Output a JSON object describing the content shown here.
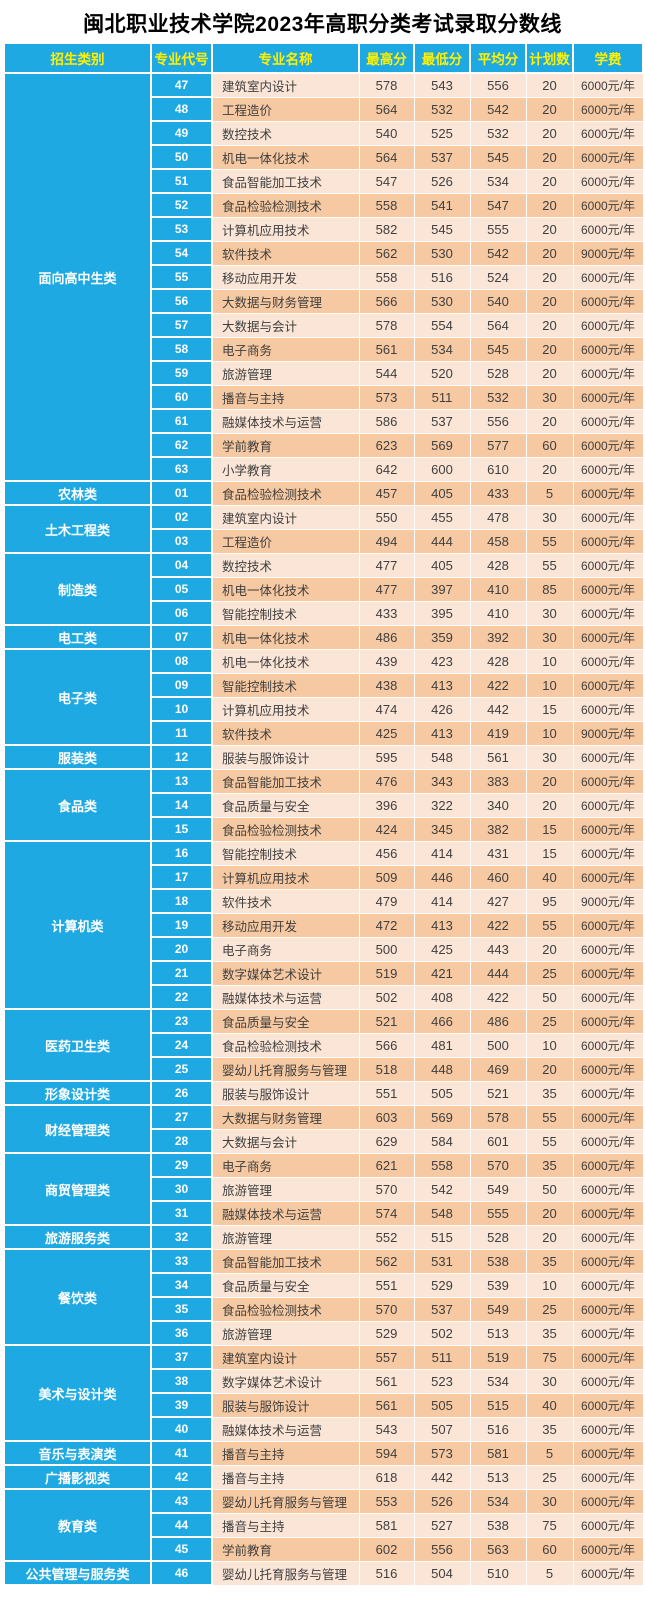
{
  "title": "闽北职业技术学院2023年高职分类考试录取分数线",
  "colors": {
    "blue": "#1ea9e2",
    "header_text": "#fff100",
    "category_text": "#ffffff",
    "row_light": "#fbe5d6",
    "row_dark": "#f6c9a2",
    "body_text": "#3f3f3f",
    "border": "#ffffff",
    "title_text": "#000000"
  },
  "chart_data": {
    "type": "table",
    "title": "闽北职业技术学院2023年高职分类考试录取分数线",
    "columns": [
      "招生类别",
      "专业代号",
      "专业名称",
      "最高分",
      "最低分",
      "平均分",
      "计划数",
      "学费"
    ],
    "categories": [
      {
        "name": "面向高中生类",
        "rows": [
          [
            "47",
            "建筑室内设计",
            578,
            543,
            556,
            20,
            "6000元/年"
          ],
          [
            "48",
            "工程造价",
            564,
            532,
            542,
            20,
            "6000元/年"
          ],
          [
            "49",
            "数控技术",
            540,
            525,
            532,
            20,
            "6000元/年"
          ],
          [
            "50",
            "机电一体化技术",
            564,
            537,
            545,
            20,
            "6000元/年"
          ],
          [
            "51",
            "食品智能加工技术",
            547,
            526,
            534,
            20,
            "6000元/年"
          ],
          [
            "52",
            "食品检验检测技术",
            558,
            541,
            547,
            20,
            "6000元/年"
          ],
          [
            "53",
            "计算机应用技术",
            582,
            545,
            555,
            20,
            "6000元/年"
          ],
          [
            "54",
            "软件技术",
            562,
            530,
            542,
            20,
            "9000元/年"
          ],
          [
            "55",
            "移动应用开发",
            558,
            516,
            524,
            20,
            "6000元/年"
          ],
          [
            "56",
            "大数据与财务管理",
            566,
            530,
            540,
            20,
            "6000元/年"
          ],
          [
            "57",
            "大数据与会计",
            578,
            554,
            564,
            20,
            "6000元/年"
          ],
          [
            "58",
            "电子商务",
            561,
            534,
            545,
            20,
            "6000元/年"
          ],
          [
            "59",
            "旅游管理",
            544,
            520,
            528,
            20,
            "6000元/年"
          ],
          [
            "60",
            "播音与主持",
            573,
            511,
            532,
            30,
            "6000元/年"
          ],
          [
            "61",
            "融媒体技术与运营",
            586,
            537,
            556,
            20,
            "6000元/年"
          ],
          [
            "62",
            "学前教育",
            623,
            569,
            577,
            60,
            "6000元/年"
          ],
          [
            "63",
            "小学教育",
            642,
            600,
            610,
            20,
            "6000元/年"
          ]
        ]
      },
      {
        "name": "农林类",
        "rows": [
          [
            "01",
            "食品检验检测技术",
            457,
            405,
            433,
            5,
            "6000元/年"
          ]
        ]
      },
      {
        "name": "土木工程类",
        "rows": [
          [
            "02",
            "建筑室内设计",
            550,
            455,
            478,
            30,
            "6000元/年"
          ],
          [
            "03",
            "工程造价",
            494,
            444,
            458,
            55,
            "6000元/年"
          ]
        ]
      },
      {
        "name": "制造类",
        "rows": [
          [
            "04",
            "数控技术",
            477,
            405,
            428,
            55,
            "6000元/年"
          ],
          [
            "05",
            "机电一体化技术",
            477,
            397,
            410,
            85,
            "6000元/年"
          ],
          [
            "06",
            "智能控制技术",
            433,
            395,
            410,
            30,
            "6000元/年"
          ]
        ]
      },
      {
        "name": "电工类",
        "rows": [
          [
            "07",
            "机电一体化技术",
            486,
            359,
            392,
            30,
            "6000元/年"
          ]
        ]
      },
      {
        "name": "电子类",
        "rows": [
          [
            "08",
            "机电一体化技术",
            439,
            423,
            428,
            10,
            "6000元/年"
          ],
          [
            "09",
            "智能控制技术",
            438,
            413,
            422,
            10,
            "6000元/年"
          ],
          [
            "10",
            "计算机应用技术",
            474,
            426,
            442,
            15,
            "6000元/年"
          ],
          [
            "11",
            "软件技术",
            425,
            413,
            419,
            10,
            "9000元/年"
          ]
        ]
      },
      {
        "name": "服装类",
        "rows": [
          [
            "12",
            "服装与服饰设计",
            595,
            548,
            561,
            30,
            "6000元/年"
          ]
        ]
      },
      {
        "name": "食品类",
        "rows": [
          [
            "13",
            "食品智能加工技术",
            476,
            343,
            383,
            20,
            "6000元/年"
          ],
          [
            "14",
            "食品质量与安全",
            396,
            322,
            340,
            20,
            "6000元/年"
          ],
          [
            "15",
            "食品检验检测技术",
            424,
            345,
            382,
            15,
            "6000元/年"
          ]
        ]
      },
      {
        "name": "计算机类",
        "rows": [
          [
            "16",
            "智能控制技术",
            456,
            414,
            431,
            15,
            "6000元/年"
          ],
          [
            "17",
            "计算机应用技术",
            509,
            446,
            460,
            40,
            "6000元/年"
          ],
          [
            "18",
            "软件技术",
            479,
            414,
            427,
            95,
            "9000元/年"
          ],
          [
            "19",
            "移动应用开发",
            472,
            413,
            422,
            55,
            "6000元/年"
          ],
          [
            "20",
            "电子商务",
            500,
            425,
            443,
            20,
            "6000元/年"
          ],
          [
            "21",
            "数字媒体艺术设计",
            519,
            421,
            444,
            25,
            "6000元/年"
          ],
          [
            "22",
            "融媒体技术与运营",
            502,
            408,
            422,
            50,
            "6000元/年"
          ]
        ]
      },
      {
        "name": "医药卫生类",
        "rows": [
          [
            "23",
            "食品质量与安全",
            521,
            466,
            486,
            25,
            "6000元/年"
          ],
          [
            "24",
            "食品检验检测技术",
            566,
            481,
            500,
            10,
            "6000元/年"
          ],
          [
            "25",
            "婴幼儿托育服务与管理",
            518,
            448,
            469,
            20,
            "6000元/年"
          ]
        ]
      },
      {
        "name": "形象设计类",
        "rows": [
          [
            "26",
            "服装与服饰设计",
            551,
            505,
            521,
            35,
            "6000元/年"
          ]
        ]
      },
      {
        "name": "财经管理类",
        "rows": [
          [
            "27",
            "大数据与财务管理",
            603,
            569,
            578,
            55,
            "6000元/年"
          ],
          [
            "28",
            "大数据与会计",
            629,
            584,
            601,
            55,
            "6000元/年"
          ]
        ]
      },
      {
        "name": "商贸管理类",
        "rows": [
          [
            "29",
            "电子商务",
            621,
            558,
            570,
            35,
            "6000元/年"
          ],
          [
            "30",
            "旅游管理",
            570,
            542,
            549,
            50,
            "6000元/年"
          ],
          [
            "31",
            "融媒体技术与运营",
            574,
            548,
            555,
            20,
            "6000元/年"
          ]
        ]
      },
      {
        "name": "旅游服务类",
        "rows": [
          [
            "32",
            "旅游管理",
            552,
            515,
            528,
            20,
            "6000元/年"
          ]
        ]
      },
      {
        "name": "餐饮类",
        "rows": [
          [
            "33",
            "食品智能加工技术",
            562,
            531,
            538,
            35,
            "6000元/年"
          ],
          [
            "34",
            "食品质量与安全",
            551,
            529,
            539,
            10,
            "6000元/年"
          ],
          [
            "35",
            "食品检验检测技术",
            570,
            537,
            549,
            25,
            "6000元/年"
          ],
          [
            "36",
            "旅游管理",
            529,
            502,
            513,
            35,
            "6000元/年"
          ]
        ]
      },
      {
        "name": "美术与设计类",
        "rows": [
          [
            "37",
            "建筑室内设计",
            557,
            511,
            519,
            75,
            "6000元/年"
          ],
          [
            "38",
            "数字媒体艺术设计",
            561,
            523,
            534,
            30,
            "6000元/年"
          ],
          [
            "39",
            "服装与服饰设计",
            561,
            505,
            515,
            40,
            "6000元/年"
          ],
          [
            "40",
            "融媒体技术与运营",
            543,
            507,
            516,
            35,
            "6000元/年"
          ]
        ]
      },
      {
        "name": "音乐与表演类",
        "rows": [
          [
            "41",
            "播音与主持",
            594,
            573,
            581,
            5,
            "6000元/年"
          ]
        ]
      },
      {
        "name": "广播影视类",
        "rows": [
          [
            "42",
            "播音与主持",
            618,
            442,
            513,
            25,
            "6000元/年"
          ]
        ]
      },
      {
        "name": "教育类",
        "rows": [
          [
            "43",
            "婴幼儿托育服务与管理",
            553,
            526,
            534,
            30,
            "6000元/年"
          ],
          [
            "44",
            "播音与主持",
            581,
            527,
            538,
            75,
            "6000元/年"
          ],
          [
            "45",
            "学前教育",
            602,
            556,
            563,
            60,
            "6000元/年"
          ]
        ]
      },
      {
        "name": "公共管理与服务类",
        "rows": [
          [
            "46",
            "婴幼儿托育服务与管理",
            516,
            504,
            510,
            5,
            "6000元/年"
          ]
        ]
      }
    ]
  }
}
